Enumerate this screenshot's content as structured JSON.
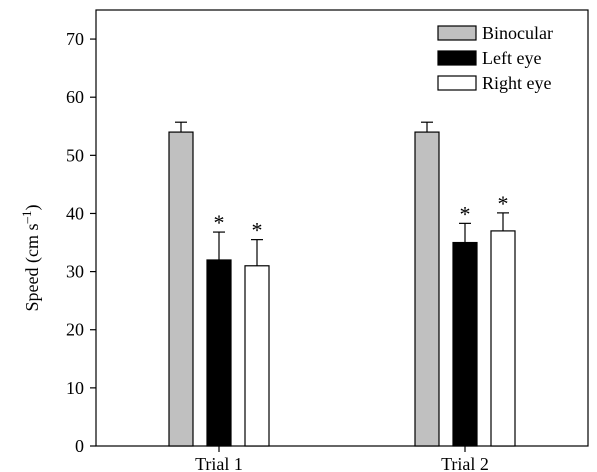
{
  "chart_data": {
    "type": "bar",
    "categories": [
      "Trial 1",
      "Trial 2"
    ],
    "ylabel": "Speed (cm s–1)",
    "ylabel_main": "Speed (cm s",
    "ylabel_sup": "–1",
    "ylabel_close": ")",
    "xlabel": "",
    "title": "",
    "ylim": [
      0,
      75
    ],
    "yticks": [
      0,
      10,
      20,
      30,
      40,
      50,
      60,
      70
    ],
    "series": [
      {
        "name": "Binocular",
        "color": "#c0c0c0",
        "values": [
          54,
          54
        ],
        "errors": [
          1.7,
          1.7
        ],
        "significant": [
          false,
          false
        ]
      },
      {
        "name": "Left eye",
        "color": "#000000",
        "values": [
          32,
          35
        ],
        "errors": [
          4.8,
          3.3
        ],
        "significant": [
          true,
          true
        ]
      },
      {
        "name": "Right eye",
        "color": "#ffffff",
        "values": [
          31,
          37
        ],
        "errors": [
          4.5,
          3.1
        ],
        "significant": [
          true,
          true
        ]
      }
    ],
    "significance_marker": "*",
    "legend_position": "top-right",
    "grid": false
  }
}
